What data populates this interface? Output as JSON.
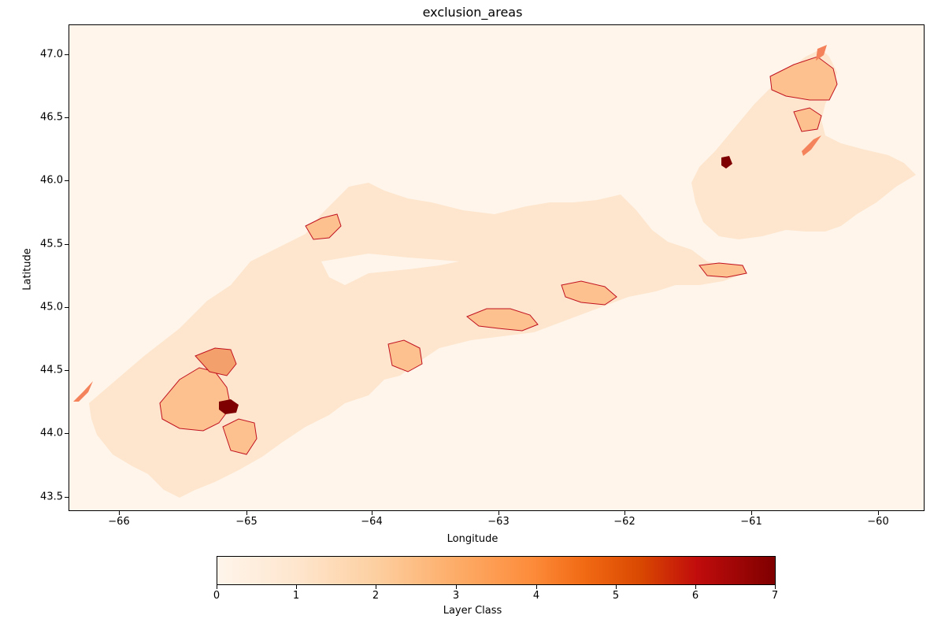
{
  "map": {
    "title": "exclusion_areas",
    "xlabel": "Longitude",
    "ylabel": "Latitude",
    "x_ticks": [
      "−66",
      "−65",
      "−64",
      "−63",
      "−62",
      "−61",
      "−60"
    ],
    "y_ticks": [
      "47.0",
      "46.5",
      "46.0",
      "45.5",
      "45.0",
      "44.5",
      "44.0",
      "43.5"
    ],
    "colorbar": {
      "label": "Layer Class",
      "ticks": [
        "0",
        "1",
        "2",
        "3",
        "4",
        "5",
        "6",
        "7"
      ],
      "colormap": "OrRd-like (light cream to dark red)"
    },
    "colors": {
      "background": "#fff5eb",
      "land": "#fee6ce",
      "class2": "#fdd0a2",
      "class3": "#fdae6b",
      "class4": "#f4825a",
      "outline": "#c1121f",
      "class7": "#7f0000"
    }
  }
}
